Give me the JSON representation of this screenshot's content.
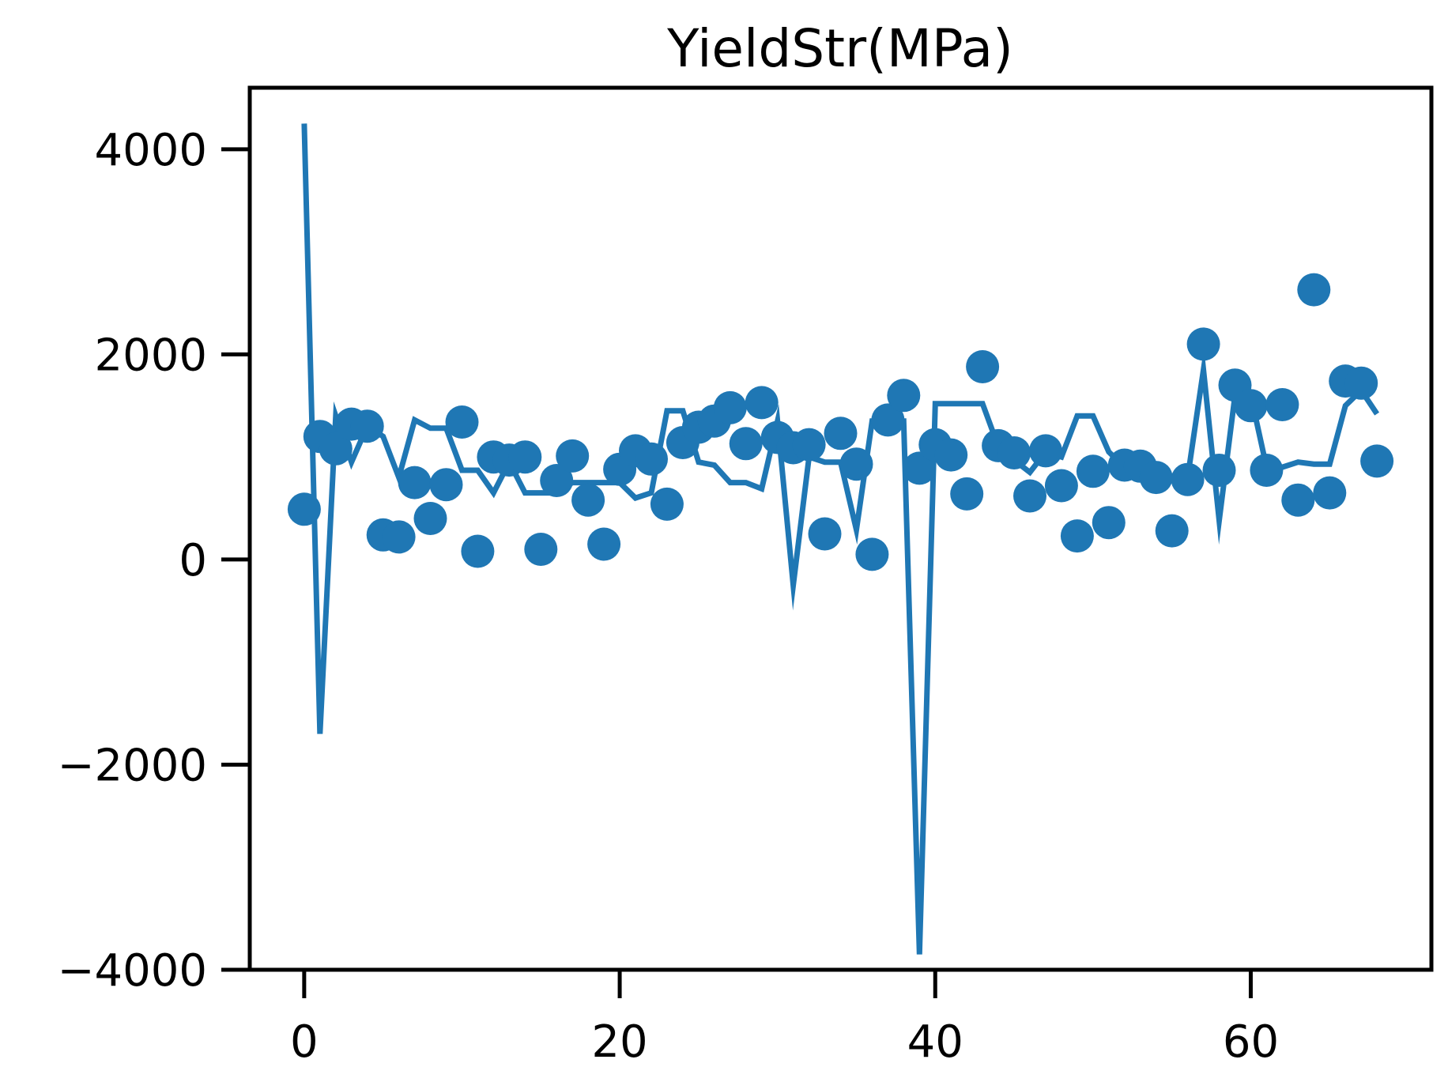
{
  "chart_data": {
    "type": "line+scatter",
    "title": "YieldStr(MPa)",
    "xlabel": "",
    "ylabel": "",
    "xlim": [
      -3.45,
      71.45
    ],
    "ylim": [
      -4000,
      4600
    ],
    "xticks": [
      0,
      20,
      40,
      60
    ],
    "yticks": [
      -4000,
      -2000,
      0,
      2000,
      4000
    ],
    "xtick_labels": [
      "0",
      "20",
      "40",
      "60"
    ],
    "ytick_labels": [
      "−4000",
      "−2000",
      "0",
      "2000",
      "4000"
    ],
    "grid": false,
    "color": "#1f77b4",
    "series": [
      {
        "kind": "line",
        "x": [
          0,
          1,
          2,
          3,
          4,
          5,
          6,
          7,
          8,
          9,
          10,
          11,
          12,
          13,
          14,
          15,
          16,
          17,
          18,
          19,
          20,
          21,
          22,
          23,
          24,
          25,
          26,
          27,
          28,
          29,
          30,
          31,
          32,
          33,
          34,
          35,
          36,
          37,
          38,
          39,
          40,
          41,
          42,
          43,
          44,
          45,
          46,
          47,
          48,
          49,
          50,
          51,
          52,
          53,
          54,
          55,
          56,
          57,
          58,
          59,
          60,
          61,
          62,
          63,
          64,
          65,
          66,
          67,
          68
        ],
        "y": [
          4250,
          -1700,
          1400,
          950,
          1300,
          1200,
          800,
          1360,
          1280,
          1280,
          870,
          870,
          650,
          950,
          650,
          650,
          650,
          750,
          750,
          750,
          750,
          600,
          650,
          1450,
          1450,
          950,
          920,
          750,
          750,
          690,
          1350,
          -250,
          1000,
          950,
          950,
          290,
          1350,
          1350,
          1350,
          -3850,
          1520,
          1520,
          1520,
          1520,
          1100,
          970,
          850,
          1050,
          1000,
          1400,
          1400,
          1050,
          900,
          900,
          850,
          800,
          800,
          1850,
          380,
          1600,
          1600,
          900,
          900,
          950,
          930,
          930,
          1500,
          1650,
          1420
        ]
      },
      {
        "kind": "scatter",
        "x": [
          0,
          1,
          2,
          3,
          4,
          5,
          6,
          7,
          8,
          9,
          10,
          11,
          12,
          13,
          14,
          15,
          16,
          17,
          18,
          19,
          20,
          21,
          22,
          23,
          24,
          25,
          26,
          27,
          28,
          29,
          30,
          31,
          32,
          33,
          34,
          35,
          36,
          37,
          38,
          39,
          40,
          41,
          42,
          43,
          44,
          45,
          46,
          47,
          48,
          49,
          50,
          51,
          52,
          53,
          54,
          55,
          56,
          57,
          58,
          59,
          60,
          61,
          62,
          63,
          64,
          65,
          66,
          67,
          68
        ],
        "y": [
          490,
          1200,
          1080,
          1320,
          1300,
          240,
          220,
          750,
          400,
          730,
          1340,
          80,
          1000,
          970,
          1000,
          100,
          770,
          1010,
          580,
          150,
          880,
          1060,
          980,
          540,
          1140,
          1290,
          1350,
          1480,
          1130,
          1530,
          1190,
          1090,
          1120,
          250,
          1230,
          930,
          50,
          1360,
          1600,
          890,
          1120,
          1020,
          640,
          1880,
          1110,
          1040,
          620,
          1060,
          720,
          230,
          860,
          360,
          920,
          910,
          800,
          280,
          780,
          2100,
          870,
          1700,
          1500,
          870,
          1510,
          580,
          2630,
          650,
          1740,
          1720,
          960
        ]
      }
    ]
  }
}
